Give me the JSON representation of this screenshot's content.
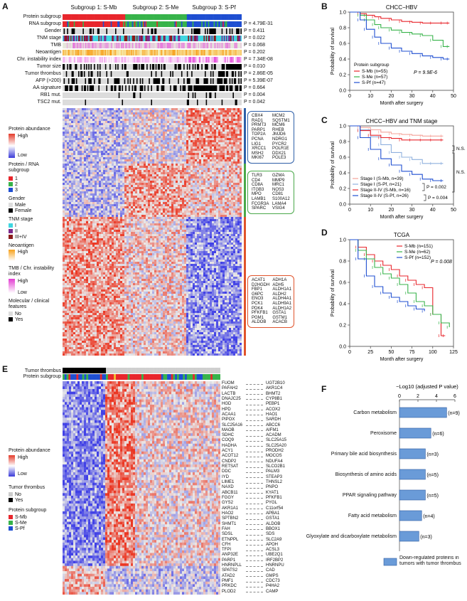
{
  "panel_a": {
    "letter": "A",
    "subgroups": [
      {
        "label": "Subgroup 1: S-Mb",
        "color": "#e8262c"
      },
      {
        "label": "Subgroup 2: S-Me",
        "color": "#37b34a"
      },
      {
        "label": "Subgroup 3: S-Pf",
        "color": "#1f4fd1"
      }
    ],
    "tracks": [
      {
        "label": "Protein subgroup",
        "p": ""
      },
      {
        "label": "RNA subgroup",
        "p": "P = 4.79E-31"
      },
      {
        "label": "Gender",
        "p": "P = 0.411"
      },
      {
        "label": "TNM stage",
        "p": "P = 0.022"
      },
      {
        "label": "TMB",
        "p": "P = 0.068"
      },
      {
        "label": "Neoantigen",
        "p": "P = 0.202"
      },
      {
        "label": "Chr. instability index",
        "p": "P = 7.34E-08"
      },
      {
        "label": "Tumor size",
        "p": "P = 0.010"
      },
      {
        "label": "Tumor thrombus",
        "p": "P = 2.86E-05"
      },
      {
        "label": "AFP (>200)",
        "p": "P = 5.39E-07"
      },
      {
        "label": "AA signature",
        "p": "P = 0.664"
      },
      {
        "label": "RB1 mut.",
        "p": "P = 0.004"
      },
      {
        "label": "TSC2 mut.",
        "p": "P = 0.042"
      }
    ],
    "legend": {
      "protein_abundance": "Protein abundance",
      "high": "High",
      "low": "Low",
      "protein_rna_subgroup": "Protein / RNA subgroup",
      "sub1": "1",
      "sub2": "2",
      "sub3": "3",
      "gender": "Gender",
      "male": "Male",
      "female": "Female",
      "tnm": "TNM stage",
      "tnm_i": "I",
      "tnm_ii": "II",
      "tnm_iii": "III+IV",
      "neoantigen": "Neoantigen",
      "neo_high": "High",
      "tmb": "TMB / Chr. instability index",
      "tmb_high": "High",
      "tmb_low": "Low",
      "mol": "Molecular / clinical features",
      "no": "No",
      "yes": "Yes"
    },
    "gene_boxes": [
      {
        "color": "#2e5fa8",
        "genes": [
          "CBX4",
          "MCM2",
          "RAD1",
          "SQSTM1",
          "PRMT3",
          "MCM6",
          "PARP1",
          "RHEB",
          "TOP2A",
          "JMJD6",
          "PCNA",
          "NDRG1",
          "LIG1",
          "PYCR2",
          "XRCC1",
          "POLR1E",
          "MSH2",
          "DDX21",
          "MKI67",
          "POLE3"
        ]
      },
      {
        "color": "#4aa84a",
        "genes": [
          "TLR3",
          "GZMA",
          "CD4",
          "MMP9",
          "CD8A",
          "MRC1",
          "ITGB3",
          "NOS3",
          "MPO",
          "CD81",
          "LAMB1",
          "S100A12",
          "FCGR3A",
          "LAMA4",
          "SPARC",
          "VSIG4"
        ]
      },
      {
        "color": "#e0532b",
        "genes": [
          "ACAT1",
          "ADH1A",
          "D2HGDH",
          "ADH5",
          "FBP1",
          "ALDH1A1",
          "G6PC",
          "ALDH2",
          "ENO3",
          "ALDH4A1",
          "PCK1",
          "ALDH9A1",
          "PDK4",
          "ALDH1A2",
          "PFKFB1",
          "GSTA1",
          "PGM1",
          "GSTM1",
          "ALDOB",
          "ACACB"
        ]
      }
    ]
  },
  "panel_b": {
    "letter": "B",
    "chart_data": {
      "type": "line",
      "title": "CHCC−HBV",
      "xlabel": "Month after surgery",
      "ylabel": "Probability of survival",
      "xlim": [
        0,
        50
      ],
      "ylim": [
        0.0,
        1.0
      ],
      "xticks": [
        "0",
        "10",
        "20",
        "30",
        "40",
        "50"
      ],
      "yticks": [
        "0.0",
        "0.2",
        "0.4",
        "0.6",
        "0.8",
        "1.0"
      ],
      "legend_title": "Protein subgroup",
      "annotation": "P = 9.9E-6",
      "series": [
        {
          "name": "S-Mb (n=55)",
          "color": "#e8262c",
          "x": [
            0,
            5,
            8,
            12,
            15,
            20,
            25,
            30,
            35,
            40,
            45,
            48
          ],
          "y": [
            1.0,
            0.98,
            0.96,
            0.94,
            0.92,
            0.9,
            0.88,
            0.87,
            0.86,
            0.86,
            0.86,
            0.86
          ]
        },
        {
          "name": "S-Me (n=57)",
          "color": "#37b34a",
          "x": [
            0,
            5,
            8,
            12,
            15,
            20,
            25,
            30,
            35,
            40,
            45,
            48
          ],
          "y": [
            1.0,
            0.96,
            0.9,
            0.84,
            0.8,
            0.77,
            0.74,
            0.72,
            0.7,
            0.64,
            0.56,
            0.56
          ]
        },
        {
          "name": "S-Pf (n=47)",
          "color": "#1f4fd1",
          "x": [
            0,
            5,
            8,
            12,
            15,
            20,
            25,
            30,
            35,
            40,
            45,
            48
          ],
          "y": [
            1.0,
            0.9,
            0.78,
            0.68,
            0.6,
            0.54,
            0.5,
            0.47,
            0.44,
            0.42,
            0.4,
            0.4
          ]
        }
      ]
    }
  },
  "panel_c": {
    "letter": "C",
    "chart_data": {
      "type": "line",
      "title": "CHCC−HBV and TNM stage",
      "xlabel": "Month after surgery",
      "ylabel": "Probability of survival",
      "xlim": [
        0,
        50
      ],
      "ylim": [
        0.0,
        1.0
      ],
      "xticks": [
        "0",
        "10",
        "20",
        "30",
        "40",
        "50"
      ],
      "yticks": [
        "0.0",
        "0.2",
        "0.4",
        "0.6",
        "0.8",
        "1.0"
      ],
      "annotations": [
        "N.S.",
        "N.S.",
        "P = 0.002",
        "P = 0.004"
      ],
      "series": [
        {
          "name": "Stage I (S-Mb, n=39)",
          "color": "#f4a39a",
          "x": [
            0,
            5,
            10,
            15,
            20,
            25,
            30,
            35,
            40,
            45
          ],
          "y": [
            1.0,
            0.98,
            0.95,
            0.92,
            0.9,
            0.89,
            0.88,
            0.87,
            0.87,
            0.87
          ]
        },
        {
          "name": "Stage I (S-Pf, n=21)",
          "color": "#8fb0de",
          "x": [
            0,
            5,
            10,
            15,
            20,
            25,
            30,
            35,
            40,
            45
          ],
          "y": [
            1.0,
            0.95,
            0.86,
            0.76,
            0.66,
            0.6,
            0.57,
            0.52,
            0.52,
            0.52
          ]
        },
        {
          "name": "Stage II-IV (S-Mb, n=16)",
          "color": "#e8262c",
          "x": [
            0,
            5,
            10,
            15,
            20,
            25,
            30,
            35,
            40,
            45
          ],
          "y": [
            1.0,
            0.94,
            0.88,
            0.85,
            0.84,
            0.82,
            0.82,
            0.82,
            0.82,
            0.82
          ]
        },
        {
          "name": "Stage II-IV (S-Pf, n=26)",
          "color": "#1f4fd1",
          "x": [
            0,
            5,
            10,
            15,
            20,
            25,
            30,
            35,
            40,
            45
          ],
          "y": [
            1.0,
            0.85,
            0.7,
            0.58,
            0.5,
            0.42,
            0.38,
            0.32,
            0.3,
            0.3
          ]
        }
      ]
    }
  },
  "panel_d": {
    "letter": "D",
    "chart_data": {
      "type": "line",
      "title": "TCGA",
      "xlabel": "Month after surgery",
      "ylabel": "Probability of survival",
      "xlim": [
        0,
        125
      ],
      "ylim": [
        0.0,
        1.0
      ],
      "xticks": [
        "0",
        "25",
        "50",
        "75",
        "100",
        "125"
      ],
      "yticks": [
        "0.0",
        "0.2",
        "0.4",
        "0.6",
        "0.8",
        "1.0"
      ],
      "annotation": "P = 0.008",
      "series": [
        {
          "name": "S-Mb (n=151)",
          "color": "#e8262c",
          "x": [
            0,
            10,
            20,
            30,
            40,
            50,
            60,
            70,
            80,
            90,
            100,
            110,
            115
          ],
          "y": [
            1.0,
            0.93,
            0.86,
            0.8,
            0.76,
            0.72,
            0.66,
            0.62,
            0.58,
            0.55,
            0.3,
            0.1,
            0.1
          ]
        },
        {
          "name": "S-Me (n=62)",
          "color": "#37b34a",
          "x": [
            0,
            10,
            20,
            30,
            40,
            50,
            60,
            70,
            80,
            90,
            100,
            110,
            120
          ],
          "y": [
            1.0,
            0.9,
            0.82,
            0.74,
            0.68,
            0.64,
            0.58,
            0.5,
            0.42,
            0.38,
            0.3,
            0.22,
            0.18
          ]
        },
        {
          "name": "S-Pf (n=152)",
          "color": "#1f4fd1",
          "x": [
            0,
            10,
            20,
            30,
            40,
            50,
            60,
            70,
            80,
            90
          ],
          "y": [
            1.0,
            0.82,
            0.66,
            0.56,
            0.5,
            0.46,
            0.42,
            0.38,
            0.35,
            0.33
          ]
        }
      ]
    }
  },
  "panel_e": {
    "letter": "E",
    "row_labels": [
      "Tumor thrombus",
      "Protein subgroup"
    ],
    "left_genes": [
      "FUOM",
      "PAFAH2",
      "LACTB",
      "DNAJC25",
      "HGD",
      "HPD",
      "ACAA1",
      "PIPOX",
      "SLC25A16",
      "MAOB",
      "SDHC",
      "COQ9",
      "HADHA",
      "ACY1",
      "ACOT12",
      "CNDP2",
      "RETSAT",
      "DDC",
      "IYD",
      "LIME1",
      "NAXD",
      "ABCB11",
      "FGGY",
      "GYS2",
      "AKR1A1",
      "HAO2",
      "SPTBN2",
      "SHMT1",
      "FAH",
      "SDSL",
      "ETNPPL",
      "CFH",
      "TFPI",
      "ANP32E",
      "PARP1",
      "HNRNPLL",
      "SPATS2",
      "ATAD2",
      "PMF1",
      "PRKDC",
      "PLOD2"
    ],
    "right_genes": [
      "UGT2B10",
      "AKR1C4",
      "BHMT2",
      "CYP8B1",
      "PEBP1",
      "ACOX2",
      "HAO1",
      "SARDH",
      "ABCC6",
      "AIFM1",
      "ACADM",
      "SLC25A15",
      "SLC25A20",
      "PRODH2",
      "MOCOS",
      "NDUFA4",
      "SLCO2B1",
      "PALM3",
      "STEAP3",
      "THNSL2",
      "PNPO",
      "KYAT1",
      "PFKFB1",
      "PYGL",
      "C11orf54",
      "APBA1",
      "GSTA1",
      "ALDOB",
      "BBOX1",
      "SDS",
      "SLC2A9",
      "APOH",
      "ACSL3",
      "UBE2Q1",
      "IRF2BP2",
      "HNRNPU",
      "CAD",
      "GMPS",
      "CDC73",
      "P4HA2",
      "CAMP"
    ],
    "legend": {
      "protein_abundance": "Protein abundance",
      "high": "High",
      "low": "Low",
      "thrombus": "Tumor thrombus",
      "no": "No",
      "yes": "Yes",
      "subgroup": "Protein subgroup",
      "smb": "S-Mb",
      "sme": "S-Me",
      "spf": "S-Pf"
    }
  },
  "panel_f": {
    "letter": "F",
    "chart_data": {
      "type": "bar",
      "title": "−Log10 (adjusted P value)",
      "xlim": [
        0,
        6
      ],
      "xticks": [
        "0",
        "2",
        "4",
        "6"
      ],
      "categories": [
        "Carbon metabolism",
        "Peroxisome",
        "Primary bile acid biosynthesis",
        "Biosynthesis of amino acids",
        "PPAR signaling pathway",
        "Fatty acid metabolism",
        "Glyoxylate and dicarboxylate metabolism"
      ],
      "values": [
        5.1,
        3.4,
        2.8,
        2.8,
        2.8,
        2.4,
        2.1
      ],
      "value_labels": [
        "(n=9)",
        "(n=6)",
        "(n=3)",
        "(n=5)",
        "(n=5)",
        "(n=4)",
        "(n=3)"
      ],
      "bar_color": "#6a9bd8",
      "legend": "Down-regulated proteins in tumors with tumor thrombus"
    }
  }
}
